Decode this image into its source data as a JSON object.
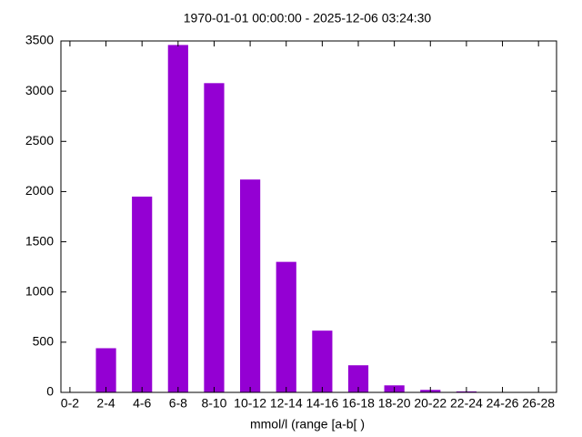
{
  "chart_data": {
    "type": "bar",
    "title": "1970-01-01 00:00:00 - 2025-12-06 03:24:30",
    "x_label": "mmol/l (range [a-b[ )",
    "categories": [
      "0-2",
      "2-4",
      "4-6",
      "6-8",
      "8-10",
      "10-12",
      "12-14",
      "14-16",
      "16-18",
      "18-20",
      "20-22",
      "22-24",
      "24-26",
      "26-28"
    ],
    "values": [
      0,
      440,
      1950,
      3460,
      3080,
      2120,
      1300,
      615,
      270,
      70,
      25,
      10,
      0,
      0
    ],
    "color": "#9400d3",
    "ylim": [
      0,
      3500
    ],
    "yticks": [
      0,
      500,
      1000,
      1500,
      2000,
      2500,
      3000,
      3500
    ],
    "grid": false
  }
}
